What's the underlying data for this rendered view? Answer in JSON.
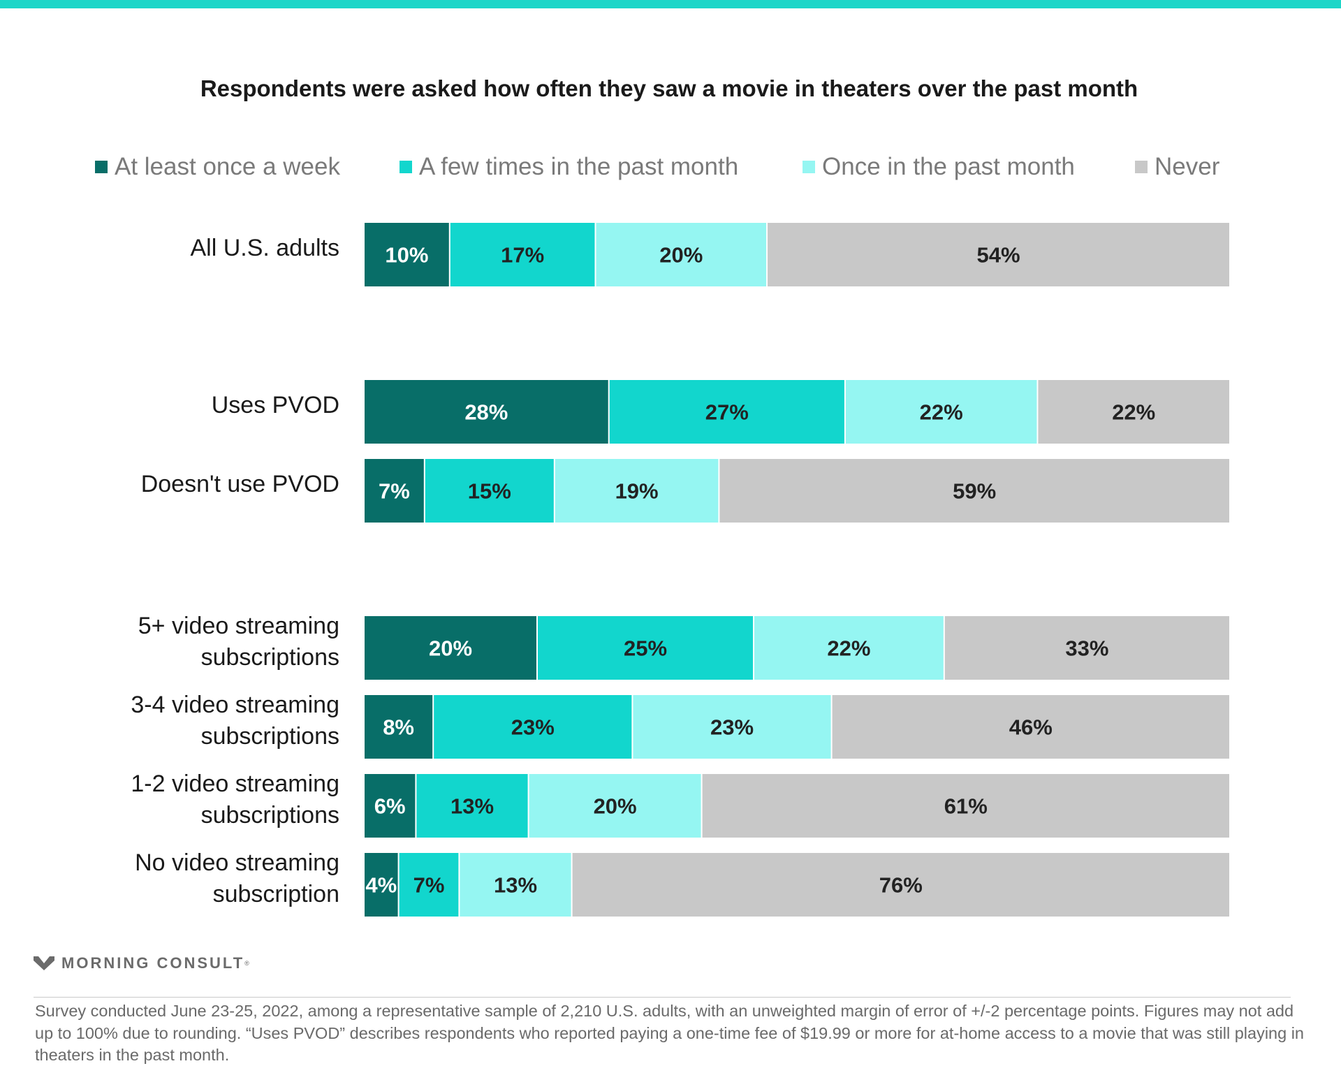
{
  "colors": {
    "accent_bar": "#1ed6c8",
    "series": [
      "#086e68",
      "#12d6cd",
      "#95f6f2",
      "#c8c8c8"
    ],
    "label_on_dark": "#ffffff",
    "label_on_light": "#222222"
  },
  "chart_data": {
    "type": "bar",
    "orientation": "horizontal",
    "stacked": true,
    "title": "Respondents were asked how often they saw a movie in theaters over the past month",
    "legend_position": "top",
    "categories": [
      "All U.S. adults",
      "Uses PVOD",
      "Doesn't use PVOD",
      "5+ video streaming subscriptions",
      "3-4 video streaming subscriptions",
      "1-2 video streaming subscriptions",
      "No video streaming subscription"
    ],
    "category_lines": [
      [
        "All U.S. adults"
      ],
      [
        "Uses PVOD"
      ],
      [
        "Doesn't use PVOD"
      ],
      [
        "5+ video streaming",
        "subscriptions"
      ],
      [
        "3-4 video streaming",
        "subscriptions"
      ],
      [
        "1-2 video streaming",
        "subscriptions"
      ],
      [
        "No video streaming",
        "subscription"
      ]
    ],
    "series": [
      {
        "name": "At least once a week",
        "values": [
          10,
          28,
          7,
          20,
          8,
          6,
          4
        ]
      },
      {
        "name": "A few times in the past month",
        "values": [
          17,
          27,
          15,
          25,
          23,
          13,
          7
        ]
      },
      {
        "name": "Once in the past month",
        "values": [
          20,
          22,
          19,
          22,
          23,
          20,
          13
        ]
      },
      {
        "name": "Never",
        "values": [
          54,
          22,
          59,
          33,
          46,
          61,
          76
        ]
      }
    ],
    "data_label_suffix": "%",
    "grid": false
  },
  "branding": {
    "logo_text": "MORNING CONSULT",
    "logo_mark": "®"
  },
  "footnote": "Survey conducted June 23-25, 2022, among a representative sample of 2,210 U.S. adults, with an unweighted margin of error of +/-2 percentage points. Figures may not add up to 100% due to rounding. “Uses PVOD” describes respondents who reported paying a one-time fee of $19.99 or more for at-home access to a movie that was still playing in theaters in the past month."
}
